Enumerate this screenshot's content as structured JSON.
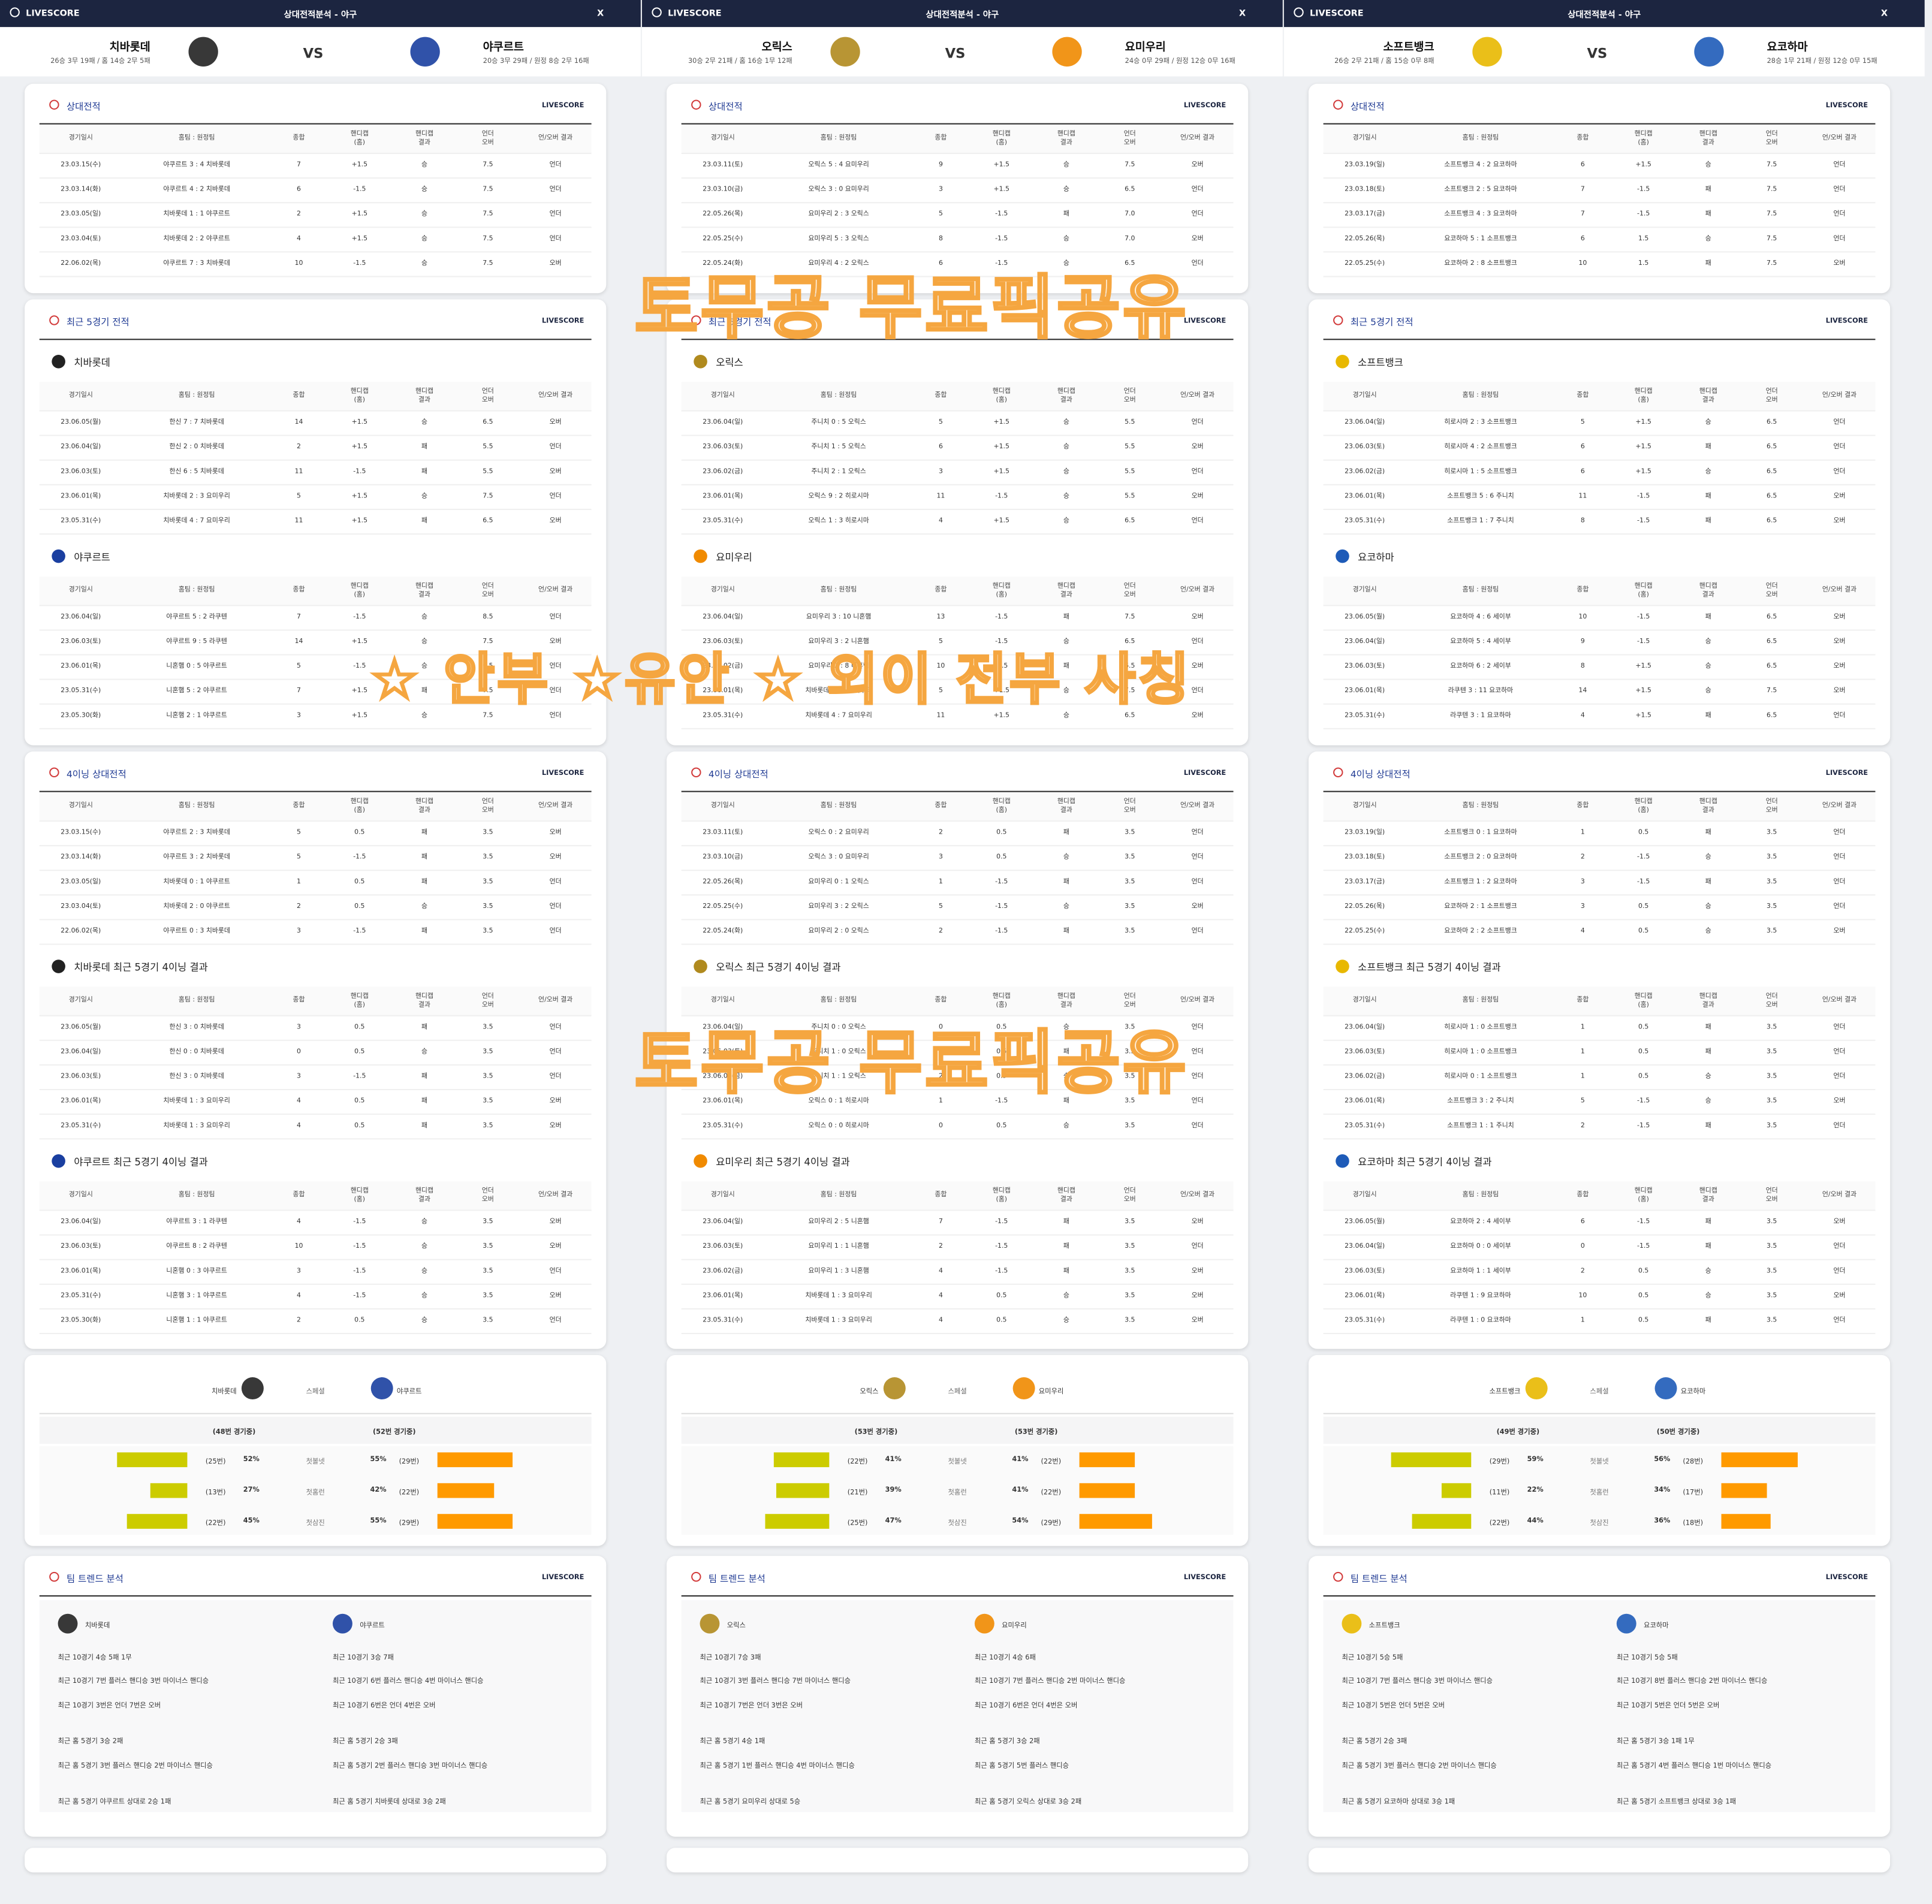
{
  "brand": "LIVESCORE",
  "title": "상대전적분석 - 야구",
  "close": "X",
  "vs": "VS",
  "special": "스페셜",
  "columns": [
    "경기일시",
    "홈팀 : 원정팀",
    "종합",
    "핸디캡\n(홈)",
    "핸디캡\n결과",
    "언더\n오버",
    "언/오버 결과"
  ],
  "sections": [
    "상대전적",
    "최근 5경기 전적",
    "4이닝 상대전적",
    "팀 트렌드 분석"
  ],
  "stat_labels": [
    "첫볼넷",
    "첫홈런",
    "첫삼진"
  ],
  "watermarks": [
    "토무공 무료픽공유",
    "☆ 안부 ☆유안 ☆ 외이 전부 사칭",
    "토무공 무료픽공유"
  ],
  "panels": [
    {
      "home": {
        "name": "치바롯데",
        "record": "26승 3무 19패 / 홈 14승 2무 5패",
        "color": "#222222"
      },
      "away": {
        "name": "야쿠르트",
        "record": "20승 3무 29패 / 원정 8승 2무 16패",
        "color": "#1a3fa0"
      },
      "h2h": [
        [
          "23.03.15(수)",
          "야쿠르트 3 : 4 치바롯데",
          "7",
          "+1.5",
          "승",
          "7.5",
          "언더"
        ],
        [
          "23.03.14(화)",
          "야쿠르트 4 : 2 치바롯데",
          "6",
          "-1.5",
          "승",
          "7.5",
          "언더"
        ],
        [
          "23.03.05(일)",
          "치바롯데 1 : 1 야쿠르트",
          "2",
          "+1.5",
          "승",
          "7.5",
          "언더"
        ],
        [
          "23.03.04(토)",
          "치바롯데 2 : 2 야쿠르트",
          "4",
          "+1.5",
          "승",
          "7.5",
          "언더"
        ],
        [
          "22.06.02(목)",
          "야쿠르트 7 : 3 치바롯데",
          "10",
          "-1.5",
          "승",
          "7.5",
          "오버"
        ]
      ],
      "home_recent": [
        [
          "23.06.05(월)",
          "한신 7 : 7 치바롯데",
          "14",
          "+1.5",
          "승",
          "6.5",
          "오버"
        ],
        [
          "23.06.04(일)",
          "한신 2 : 0 치바롯데",
          "2",
          "+1.5",
          "패",
          "5.5",
          "언더"
        ],
        [
          "23.06.03(토)",
          "한신 6 : 5 치바롯데",
          "11",
          "-1.5",
          "패",
          "5.5",
          "오버"
        ],
        [
          "23.06.01(목)",
          "치바롯데 2 : 3 요미우리",
          "5",
          "+1.5",
          "승",
          "7.5",
          "언더"
        ],
        [
          "23.05.31(수)",
          "치바롯데 4 : 7 요미우리",
          "11",
          "+1.5",
          "패",
          "6.5",
          "오버"
        ]
      ],
      "away_recent": [
        [
          "23.06.04(일)",
          "야쿠르트 5 : 2 라쿠텐",
          "7",
          "-1.5",
          "승",
          "8.5",
          "언더"
        ],
        [
          "23.06.03(토)",
          "야쿠르트 9 : 5 라쿠텐",
          "14",
          "+1.5",
          "승",
          "7.5",
          "오버"
        ],
        [
          "23.06.01(목)",
          "니혼햄 0 : 5 야쿠르트",
          "5",
          "-1.5",
          "승",
          "6.5",
          "언더"
        ],
        [
          "23.05.31(수)",
          "니혼햄 5 : 2 야쿠르트",
          "7",
          "+1.5",
          "패",
          "7.5",
          "언더"
        ],
        [
          "23.05.30(화)",
          "니혼햄 2 : 1 야쿠르트",
          "3",
          "+1.5",
          "승",
          "7.5",
          "언더"
        ]
      ],
      "inning_h2h": [
        [
          "23.03.15(수)",
          "야쿠르트 2 : 3 치바롯데",
          "5",
          "0.5",
          "패",
          "3.5",
          "오버"
        ],
        [
          "23.03.14(화)",
          "야쿠르트 3 : 2 치바롯데",
          "5",
          "-1.5",
          "패",
          "3.5",
          "오버"
        ],
        [
          "23.03.05(일)",
          "치바롯데 0 : 1 야쿠르트",
          "1",
          "0.5",
          "패",
          "3.5",
          "언더"
        ],
        [
          "23.03.04(토)",
          "치바롯데 2 : 0 야쿠르트",
          "2",
          "0.5",
          "승",
          "3.5",
          "언더"
        ],
        [
          "22.06.02(목)",
          "야쿠르트 0 : 3 치바롯데",
          "3",
          "-1.5",
          "패",
          "3.5",
          "언더"
        ]
      ],
      "home_inning_title": "치바롯데 최근 5경기 4이닝 결과",
      "home_inning": [
        [
          "23.06.05(월)",
          "한신 3 : 0 치바롯데",
          "3",
          "0.5",
          "패",
          "3.5",
          "언더"
        ],
        [
          "23.06.04(일)",
          "한신 0 : 0 치바롯데",
          "0",
          "0.5",
          "승",
          "3.5",
          "언더"
        ],
        [
          "23.06.03(토)",
          "한신 3 : 0 치바롯데",
          "3",
          "-1.5",
          "패",
          "3.5",
          "언더"
        ],
        [
          "23.06.01(목)",
          "치바롯데 1 : 3 요미우리",
          "4",
          "0.5",
          "패",
          "3.5",
          "오버"
        ],
        [
          "23.05.31(수)",
          "치바롯데 1 : 3 요미우리",
          "4",
          "0.5",
          "패",
          "3.5",
          "오버"
        ]
      ],
      "away_inning_title": "야쿠르트 최근 5경기 4이닝 결과",
      "away_inning": [
        [
          "23.06.04(일)",
          "야쿠르트 3 : 1 라쿠텐",
          "4",
          "-1.5",
          "승",
          "3.5",
          "오버"
        ],
        [
          "23.06.03(토)",
          "야쿠르트 8 : 2 라쿠텐",
          "10",
          "-1.5",
          "승",
          "3.5",
          "오버"
        ],
        [
          "23.06.01(목)",
          "니혼햄 0 : 3 야쿠르트",
          "3",
          "-1.5",
          "승",
          "3.5",
          "언더"
        ],
        [
          "23.05.31(수)",
          "니혼햄 3 : 1 야쿠르트",
          "4",
          "-1.5",
          "승",
          "3.5",
          "오버"
        ],
        [
          "23.05.30(화)",
          "니혼햄 1 : 1 야쿠르트",
          "2",
          "0.5",
          "승",
          "3.5",
          "언더"
        ]
      ],
      "stats": {
        "home_games": "(48번 경기중)",
        "away_games": "(52번 경기중)",
        "home": {
          "values": [
            52,
            27,
            45
          ],
          "value_labels": [
            "52%",
            "27%",
            "45%"
          ],
          "counts": [
            "(25번)",
            "(13번)",
            "(22번)"
          ]
        },
        "away": {
          "values": [
            55,
            42,
            55
          ],
          "value_labels": [
            "55%",
            "42%",
            "55%"
          ],
          "counts": [
            "(29번)",
            "(22번)",
            "(29번)"
          ]
        }
      },
      "trend": {
        "home": [
          "최근 10경기 4승 5패 1무",
          "최근 10경기 7번 플러스 핸디승 3번 마이너스 핸디승",
          "최근 10경기 3번은 언더 7번은 오버",
          "최근 홈 5경기 3승 2패",
          "최근 홈 5경기 3번 플러스 핸디승 2번 마이너스 핸디승",
          "최근 홈 5경기 야쿠르트 상대로 2승 1패"
        ],
        "away": [
          "최근 10경기 3승 7패",
          "최근 10경기 6번 플러스 핸디승 4번 마이너스 핸디승",
          "최근 10경기 6번은 언더 4번은 오버",
          "최근 홈 5경기 2승 3패",
          "최근 홈 5경기 2번 플러스 핸디승 3번 마이너스 핸디승",
          "최근 홈 5경기 치바롯데 상대로 3승 2패"
        ]
      }
    },
    {
      "home": {
        "name": "오릭스",
        "record": "30승 2무 21패 / 홈 16승 1무 12패",
        "color": "#b08a1e"
      },
      "away": {
        "name": "요미우리",
        "record": "24승 0무 29패 / 원정 12승 0무 16패",
        "color": "#f08a00"
      },
      "h2h": [
        [
          "23.03.11(토)",
          "오릭스 5 : 4 요미우리",
          "9",
          "+1.5",
          "승",
          "7.5",
          "오버"
        ],
        [
          "23.03.10(금)",
          "오릭스 3 : 0 요미우리",
          "3",
          "+1.5",
          "승",
          "6.5",
          "언더"
        ],
        [
          "22.05.26(목)",
          "요미우리 2 : 3 오릭스",
          "5",
          "-1.5",
          "패",
          "7.0",
          "언더"
        ],
        [
          "22.05.25(수)",
          "요미우리 5 : 3 오릭스",
          "8",
          "-1.5",
          "승",
          "7.0",
          "오버"
        ],
        [
          "22.05.24(화)",
          "요미우리 4 : 2 오릭스",
          "6",
          "-1.5",
          "승",
          "6.5",
          "언더"
        ]
      ],
      "home_recent": [
        [
          "23.06.04(일)",
          "주니치 0 : 5 오릭스",
          "5",
          "+1.5",
          "승",
          "5.5",
          "언더"
        ],
        [
          "23.06.03(토)",
          "주니치 1 : 5 오릭스",
          "6",
          "+1.5",
          "승",
          "5.5",
          "오버"
        ],
        [
          "23.06.02(금)",
          "주니치 2 : 1 오릭스",
          "3",
          "+1.5",
          "승",
          "5.5",
          "언더"
        ],
        [
          "23.06.01(목)",
          "오릭스 9 : 2 히로시마",
          "11",
          "-1.5",
          "승",
          "5.5",
          "오버"
        ],
        [
          "23.05.31(수)",
          "오릭스 1 : 3 히로시마",
          "4",
          "+1.5",
          "승",
          "6.5",
          "언더"
        ]
      ],
      "away_recent": [
        [
          "23.06.04(일)",
          "요미우리 3 : 10 니혼햄",
          "13",
          "-1.5",
          "패",
          "7.5",
          "오버"
        ],
        [
          "23.06.03(토)",
          "요미우리 3 : 2 니혼햄",
          "5",
          "-1.5",
          "승",
          "6.5",
          "언더"
        ],
        [
          "23.06.02(금)",
          "요미우리 2 : 8 니혼햄",
          "10",
          "-1.5",
          "패",
          "6.5",
          "오버"
        ],
        [
          "23.06.01(목)",
          "치바롯데 2 : 3 요미우리",
          "5",
          "+1.5",
          "승",
          "7.5",
          "언더"
        ],
        [
          "23.05.31(수)",
          "치바롯데 4 : 7 요미우리",
          "11",
          "+1.5",
          "승",
          "6.5",
          "오버"
        ]
      ],
      "inning_h2h": [
        [
          "23.03.11(토)",
          "오릭스 0 : 2 요미우리",
          "2",
          "0.5",
          "패",
          "3.5",
          "언더"
        ],
        [
          "23.03.10(금)",
          "오릭스 3 : 0 요미우리",
          "3",
          "0.5",
          "승",
          "3.5",
          "언더"
        ],
        [
          "22.05.26(목)",
          "요미우리 0 : 1 오릭스",
          "1",
          "-1.5",
          "패",
          "3.5",
          "언더"
        ],
        [
          "22.05.25(수)",
          "요미우리 3 : 2 오릭스",
          "5",
          "-1.5",
          "승",
          "3.5",
          "오버"
        ],
        [
          "22.05.24(화)",
          "요미우리 2 : 0 오릭스",
          "2",
          "-1.5",
          "패",
          "3.5",
          "언더"
        ]
      ],
      "home_inning_title": "오릭스 최근 5경기 4이닝 결과",
      "home_inning": [
        [
          "23.06.04(일)",
          "주니치 0 : 0 오릭스",
          "0",
          "0.5",
          "승",
          "3.5",
          "언더"
        ],
        [
          "23.06.03(토)",
          "주니치 1 : 0 오릭스",
          "1",
          "0.5",
          "패",
          "3.5",
          "언더"
        ],
        [
          "23.06.02(금)",
          "주니치 1 : 1 오릭스",
          "2",
          "0.5",
          "승",
          "3.5",
          "언더"
        ],
        [
          "23.06.01(목)",
          "오릭스 0 : 1 히로시마",
          "1",
          "-1.5",
          "패",
          "3.5",
          "언더"
        ],
        [
          "23.05.31(수)",
          "오릭스 0 : 0 히로시마",
          "0",
          "0.5",
          "승",
          "3.5",
          "언더"
        ]
      ],
      "away_inning_title": "요미우리 최근 5경기 4이닝 결과",
      "away_inning": [
        [
          "23.06.04(일)",
          "요미우리 2 : 5 니혼햄",
          "7",
          "-1.5",
          "패",
          "3.5",
          "오버"
        ],
        [
          "23.06.03(토)",
          "요미우리 1 : 1 니혼햄",
          "2",
          "-1.5",
          "패",
          "3.5",
          "언더"
        ],
        [
          "23.06.02(금)",
          "요미우리 1 : 3 니혼햄",
          "4",
          "-1.5",
          "패",
          "3.5",
          "오버"
        ],
        [
          "23.06.01(목)",
          "치바롯데 1 : 3 요미우리",
          "4",
          "0.5",
          "승",
          "3.5",
          "오버"
        ],
        [
          "23.05.31(수)",
          "치바롯데 1 : 3 요미우리",
          "4",
          "0.5",
          "승",
          "3.5",
          "오버"
        ]
      ],
      "stats": {
        "home_games": "(53번 경기중)",
        "away_games": "(53번 경기중)",
        "home": {
          "values": [
            41,
            39,
            47
          ],
          "value_labels": [
            "41%",
            "39%",
            "47%"
          ],
          "counts": [
            "(22번)",
            "(21번)",
            "(25번)"
          ]
        },
        "away": {
          "values": [
            41,
            41,
            54
          ],
          "value_labels": [
            "41%",
            "41%",
            "54%"
          ],
          "counts": [
            "(22번)",
            "(22번)",
            "(29번)"
          ]
        }
      },
      "trend": {
        "home": [
          "최근 10경기 7승 3패",
          "최근 10경기 3번 플러스 핸디승 7번 마이너스 핸디승",
          "최근 10경기 7번은 언더 3번은 오버",
          "최근 홈 5경기 4승 1패",
          "최근 홈 5경기 1번 플러스 핸디승 4번 마이너스 핸디승",
          "최근 홈 5경기 요미우리 상대로 5승"
        ],
        "away": [
          "최근 10경기 4승 6패",
          "최근 10경기 7번 플러스 핸디승 2번 마이너스 핸디승",
          "최근 10경기 6번은 언더 4번은 오버",
          "최근 홈 5경기 3승 2패",
          "최근 홈 5경기 5번 플러스 핸디승",
          "최근 홈 5경기 오릭스 상대로 3승 2패"
        ]
      }
    },
    {
      "home": {
        "name": "소프트뱅크",
        "record": "26승 2무 21패 / 홈 15승 0무 8패",
        "color": "#e8b800"
      },
      "away": {
        "name": "요코하마",
        "record": "28승 1무 21패 / 원정 12승 0무 15패",
        "color": "#1e5bb8"
      },
      "h2h": [
        [
          "23.03.19(일)",
          "소프트뱅크 4 : 2 요코하마",
          "6",
          "+1.5",
          "승",
          "7.5",
          "언더"
        ],
        [
          "23.03.18(토)",
          "소프트뱅크 2 : 5 요코하마",
          "7",
          "-1.5",
          "패",
          "7.5",
          "언더"
        ],
        [
          "23.03.17(금)",
          "소프트뱅크 4 : 3 요코하마",
          "7",
          "-1.5",
          "패",
          "7.5",
          "언더"
        ],
        [
          "22.05.26(목)",
          "요코하마 5 : 1 소프트뱅크",
          "6",
          "1.5",
          "승",
          "7.5",
          "언더"
        ],
        [
          "22.05.25(수)",
          "요코하마 2 : 8 소프트뱅크",
          "10",
          "1.5",
          "패",
          "7.5",
          "오버"
        ]
      ],
      "home_recent": [
        [
          "23.06.04(일)",
          "히로시마 2 : 3 소프트뱅크",
          "5",
          "+1.5",
          "승",
          "6.5",
          "언더"
        ],
        [
          "23.06.03(토)",
          "히로시마 4 : 2 소프트뱅크",
          "6",
          "+1.5",
          "패",
          "6.5",
          "언더"
        ],
        [
          "23.06.02(금)",
          "히로시마 1 : 5 소프트뱅크",
          "6",
          "+1.5",
          "승",
          "6.5",
          "언더"
        ],
        [
          "23.06.01(목)",
          "소프트뱅크 5 : 6 주니치",
          "11",
          "-1.5",
          "패",
          "6.5",
          "오버"
        ],
        [
          "23.05.31(수)",
          "소프트뱅크 1 : 7 주니치",
          "8",
          "-1.5",
          "패",
          "6.5",
          "오버"
        ]
      ],
      "away_recent": [
        [
          "23.06.05(월)",
          "요코하마 4 : 6 세이부",
          "10",
          "-1.5",
          "패",
          "6.5",
          "오버"
        ],
        [
          "23.06.04(일)",
          "요코하마 5 : 4 세이부",
          "9",
          "-1.5",
          "승",
          "6.5",
          "오버"
        ],
        [
          "23.06.03(토)",
          "요코하마 6 : 2 세이부",
          "8",
          "+1.5",
          "승",
          "6.5",
          "오버"
        ],
        [
          "23.06.01(목)",
          "라쿠텐 3 : 11 요코하마",
          "14",
          "+1.5",
          "승",
          "7.5",
          "오버"
        ],
        [
          "23.05.31(수)",
          "라쿠텐 3 : 1 요코하마",
          "4",
          "+1.5",
          "패",
          "6.5",
          "언더"
        ]
      ],
      "inning_h2h": [
        [
          "23.03.19(일)",
          "소프트뱅크 0 : 1 요코하마",
          "1",
          "0.5",
          "패",
          "3.5",
          "언더"
        ],
        [
          "23.03.18(토)",
          "소프트뱅크 2 : 0 요코하마",
          "2",
          "-1.5",
          "승",
          "3.5",
          "언더"
        ],
        [
          "23.03.17(금)",
          "소프트뱅크 1 : 2 요코하마",
          "3",
          "-1.5",
          "패",
          "3.5",
          "언더"
        ],
        [
          "22.05.26(목)",
          "요코하마 2 : 1 소프트뱅크",
          "3",
          "0.5",
          "승",
          "3.5",
          "언더"
        ],
        [
          "22.05.25(수)",
          "요코하마 2 : 2 소프트뱅크",
          "4",
          "0.5",
          "승",
          "3.5",
          "오버"
        ]
      ],
      "home_inning_title": "소프트뱅크 최근 5경기 4이닝 결과",
      "home_inning": [
        [
          "23.06.04(일)",
          "히로시마 1 : 0 소프트뱅크",
          "1",
          "0.5",
          "패",
          "3.5",
          "언더"
        ],
        [
          "23.06.03(토)",
          "히로시마 1 : 0 소프트뱅크",
          "1",
          "0.5",
          "패",
          "3.5",
          "언더"
        ],
        [
          "23.06.02(금)",
          "히로시마 0 : 1 소프트뱅크",
          "1",
          "0.5",
          "승",
          "3.5",
          "언더"
        ],
        [
          "23.06.01(목)",
          "소프트뱅크 3 : 2 주니치",
          "5",
          "-1.5",
          "승",
          "3.5",
          "오버"
        ],
        [
          "23.05.31(수)",
          "소프트뱅크 1 : 1 주니치",
          "2",
          "-1.5",
          "패",
          "3.5",
          "언더"
        ]
      ],
      "away_inning_title": "요코하마 최근 5경기 4이닝 결과",
      "away_inning": [
        [
          "23.06.05(월)",
          "요코하마 2 : 4 세이부",
          "6",
          "-1.5",
          "패",
          "3.5",
          "오버"
        ],
        [
          "23.06.04(일)",
          "요코하마 0 : 0 세이부",
          "0",
          "-1.5",
          "패",
          "3.5",
          "언더"
        ],
        [
          "23.06.03(토)",
          "요코하마 1 : 1 세이부",
          "2",
          "0.5",
          "승",
          "3.5",
          "언더"
        ],
        [
          "23.06.01(목)",
          "라쿠텐 1 : 9 요코하마",
          "10",
          "0.5",
          "승",
          "3.5",
          "오버"
        ],
        [
          "23.05.31(수)",
          "라쿠텐 1 : 0 요코하마",
          "1",
          "0.5",
          "패",
          "3.5",
          "언더"
        ]
      ],
      "stats": {
        "home_games": "(49번 경기중)",
        "away_games": "(50번 경기중)",
        "home": {
          "values": [
            59,
            22,
            44
          ],
          "value_labels": [
            "59%",
            "22%",
            "44%"
          ],
          "counts": [
            "(29번)",
            "(11번)",
            "(22번)"
          ]
        },
        "away": {
          "values": [
            56,
            34,
            36
          ],
          "value_labels": [
            "56%",
            "34%",
            "36%"
          ],
          "counts": [
            "(28번)",
            "(17번)",
            "(18번)"
          ]
        }
      },
      "trend": {
        "home": [
          "최근 10경기 5승 5패",
          "최근 10경기 7번 플러스 핸디승 3번 마이너스 핸디승",
          "최근 10경기 5번은 언더 5번은 오버",
          "최근 홈 5경기 2승 3패",
          "최근 홈 5경기 3번 플러스 핸디승 2번 마이너스 핸디승",
          "최근 홈 5경기 요코하마 상대로 3승 1패"
        ],
        "away": [
          "최근 10경기 5승 5패",
          "최근 10경기 8번 플러스 핸디승 2번 마이너스 핸디승",
          "최근 10경기 5번은 언더 5번은 오버",
          "최근 홈 5경기 3승 1패 1무",
          "최근 홈 5경기 4번 플러스 핸디승 1번 마이너스 핸디승",
          "최근 홈 5경기 소프트뱅크 상대로 3승 1패"
        ]
      }
    }
  ]
}
